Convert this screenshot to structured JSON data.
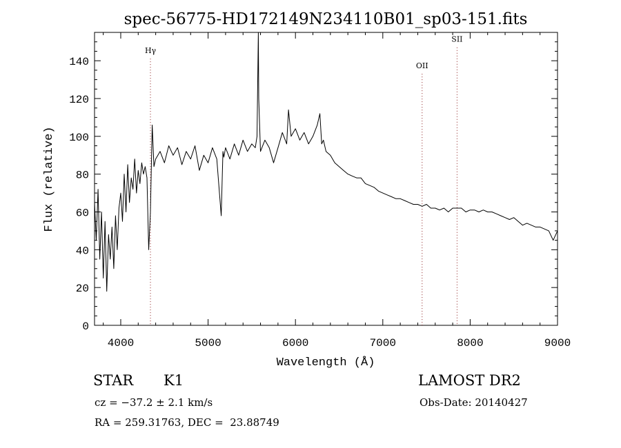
{
  "chart_data": {
    "type": "line",
    "title": "spec-56775-HD172149N234110B01_sp03-151.fits",
    "xlabel": "Wavelength (Å)",
    "ylabel": "Flux (relative)",
    "xlim": [
      3700,
      9000
    ],
    "ylim": [
      0,
      155
    ],
    "xticks": [
      4000,
      5000,
      6000,
      7000,
      8000,
      9000
    ],
    "yticks": [
      0,
      20,
      40,
      60,
      80,
      100,
      120,
      140
    ],
    "grid": false,
    "line_color": "#000000",
    "line_annotations": [
      {
        "label": "Hγ",
        "x": 4340,
        "label_y": 144
      },
      {
        "label": "OII",
        "x": 7450,
        "label_y": 136
      },
      {
        "label": "SII",
        "x": 7850,
        "label_y": 150
      }
    ],
    "series": [
      {
        "x": [
          3700,
          3720,
          3740,
          3760,
          3780,
          3800,
          3820,
          3840,
          3860,
          3880,
          3900,
          3920,
          3940,
          3960,
          3980,
          4000,
          4020,
          4040,
          4060,
          4080,
          4100,
          4120,
          4140,
          4160,
          4180,
          4200,
          4220,
          4240,
          4260,
          4280,
          4300,
          4320,
          4340,
          4360,
          4380,
          4400,
          4450,
          4500,
          4550,
          4600,
          4650,
          4700,
          4750,
          4800,
          4850,
          4900,
          4950,
          5000,
          5050,
          5100,
          5150,
          5170,
          5180,
          5200,
          5250,
          5300,
          5350,
          5400,
          5450,
          5500,
          5540,
          5560,
          5575,
          5580,
          5600,
          5650,
          5700,
          5750,
          5800,
          5850,
          5900,
          5920,
          5950,
          6000,
          6050,
          6100,
          6150,
          6200,
          6250,
          6280,
          6300,
          6320,
          6350,
          6400,
          6450,
          6500,
          6550,
          6600,
          6650,
          6700,
          6750,
          6800,
          6850,
          6900,
          6950,
          7000,
          7050,
          7100,
          7150,
          7200,
          7250,
          7300,
          7350,
          7400,
          7450,
          7500,
          7550,
          7600,
          7650,
          7700,
          7750,
          7800,
          7850,
          7900,
          7950,
          8000,
          8050,
          8100,
          8150,
          8200,
          8250,
          8300,
          8350,
          8400,
          8450,
          8500,
          8550,
          8600,
          8650,
          8700,
          8750,
          8800,
          8850,
          8900,
          8950,
          9000
        ],
        "y": [
          65,
          45,
          72,
          35,
          60,
          25,
          55,
          18,
          48,
          35,
          52,
          30,
          58,
          40,
          62,
          70,
          55,
          80,
          60,
          85,
          65,
          78,
          72,
          88,
          70,
          82,
          75,
          86,
          80,
          84,
          78,
          40,
          60,
          106,
          84,
          88,
          92,
          86,
          95,
          90,
          94,
          85,
          92,
          88,
          95,
          82,
          90,
          86,
          94,
          88,
          58,
          92,
          89,
          94,
          88,
          96,
          90,
          98,
          92,
          96,
          94,
          100,
          156,
          120,
          92,
          98,
          94,
          86,
          94,
          102,
          96,
          114,
          100,
          104,
          98,
          102,
          96,
          100,
          106,
          112,
          96,
          98,
          92,
          90,
          86,
          84,
          82,
          80,
          79,
          78,
          78,
          75,
          74,
          73,
          71,
          70,
          69,
          68,
          67,
          67,
          66,
          65,
          64,
          64,
          63,
          64,
          62,
          62,
          61,
          62,
          60,
          62,
          62,
          62,
          60,
          61,
          61,
          60,
          61,
          60,
          60,
          59,
          58,
          57,
          56,
          57,
          55,
          53,
          54,
          53,
          52,
          52,
          51,
          50,
          45,
          50
        ]
      }
    ]
  },
  "info": {
    "object_type": "STAR",
    "subclass": "K1",
    "velocity": "cz = −37.2 ± 2.1 km/s",
    "coordinates": "RA = 259.31763, DEC =  23.88749",
    "survey": "LAMOST DR2",
    "obs_date": "Obs-Date: 20140427"
  }
}
